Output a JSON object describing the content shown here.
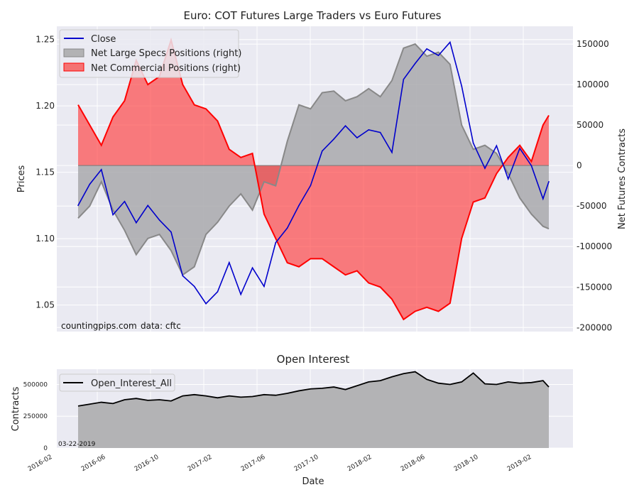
{
  "chart_data": [
    {
      "type": "line",
      "title": "Euro: COT Futures Large Traders vs Euro Futures",
      "xlabel": "",
      "ylabel": "Prices",
      "ylabel_right": "Net Futures Contracts",
      "ylim": [
        1.03,
        1.26
      ],
      "ylim_right": [
        -205000,
        172000
      ],
      "y_ticks": [
        "1.05",
        "1.10",
        "1.15",
        "1.20",
        "1.25"
      ],
      "y_ticks_right": [
        "-200000",
        "-150000",
        "-100000",
        "-50000",
        "0",
        "50000",
        "100000",
        "150000"
      ],
      "legend": [
        "Close",
        "Net Large Specs Positions (right)",
        "Net Commercial Positions (right)"
      ],
      "legend_position": "top-left",
      "watermark": "countingpips.com",
      "source": "data: cftc",
      "x": [
        0,
        4,
        8,
        12,
        16,
        20,
        24,
        28,
        32,
        36,
        40,
        44,
        48,
        52,
        56,
        60,
        64,
        68,
        72,
        76,
        80,
        84,
        88,
        92,
        96,
        100,
        104,
        108,
        112,
        116,
        120,
        124,
        128,
        132,
        136,
        140,
        144,
        148,
        152,
        156,
        160,
        162
      ],
      "series": [
        {
          "name": "Close",
          "color": "#0000cc",
          "values": [
            1.125,
            1.141,
            1.152,
            1.118,
            1.128,
            1.112,
            1.125,
            1.114,
            1.105,
            1.072,
            1.064,
            1.051,
            1.06,
            1.082,
            1.058,
            1.078,
            1.064,
            1.097,
            1.108,
            1.125,
            1.14,
            1.166,
            1.175,
            1.185,
            1.176,
            1.182,
            1.18,
            1.165,
            1.22,
            1.232,
            1.243,
            1.238,
            1.248,
            1.215,
            1.172,
            1.153,
            1.17,
            1.145,
            1.168,
            1.155,
            1.13,
            1.143
          ]
        },
        {
          "name": "Net Large Specs Positions (right)",
          "color": "#999999",
          "values": [
            -65000,
            -50000,
            -20000,
            -55000,
            -80000,
            -110000,
            -90000,
            -85000,
            -105000,
            -135000,
            -125000,
            -85000,
            -70000,
            -50000,
            -35000,
            -55000,
            -20000,
            -25000,
            30000,
            75000,
            70000,
            90000,
            92000,
            80000,
            85000,
            95000,
            85000,
            105000,
            145000,
            150000,
            135000,
            140000,
            125000,
            50000,
            20000,
            25000,
            15000,
            -10000,
            -40000,
            -60000,
            -75000,
            -78000
          ]
        },
        {
          "name": "Net Commercial Positions (right)",
          "color": "#ff0000",
          "values": [
            75000,
            50000,
            25000,
            60000,
            80000,
            130000,
            100000,
            110000,
            155000,
            100000,
            75000,
            70000,
            55000,
            20000,
            10000,
            15000,
            -60000,
            -90000,
            -120000,
            -125000,
            -115000,
            -115000,
            -125000,
            -135000,
            -130000,
            -145000,
            -150000,
            -165000,
            -190000,
            -180000,
            -175000,
            -180000,
            -170000,
            -90000,
            -45000,
            -40000,
            -10000,
            10000,
            25000,
            5000,
            50000,
            62000
          ]
        }
      ]
    },
    {
      "type": "area",
      "title": "Open Interest",
      "xlabel": "Date",
      "ylabel": "Contracts",
      "ylim": [
        0,
        620000
      ],
      "y_ticks": [
        "0",
        "250000",
        "500000"
      ],
      "x_ticks": [
        "2016-02",
        "2016-06",
        "2016-10",
        "2017-02",
        "2017-06",
        "2017-10",
        "2018-02",
        "2018-06",
        "2018-10",
        "2019-02"
      ],
      "legend": [
        "Open_Interest_All"
      ],
      "legend_position": "top-left",
      "annotation": "03-22-2019",
      "x": [
        0,
        4,
        8,
        12,
        16,
        20,
        24,
        28,
        32,
        36,
        40,
        44,
        48,
        52,
        56,
        60,
        64,
        68,
        72,
        76,
        80,
        84,
        88,
        92,
        96,
        100,
        104,
        108,
        112,
        116,
        120,
        124,
        128,
        132,
        136,
        140,
        144,
        148,
        152,
        156,
        160,
        162
      ],
      "series": [
        {
          "name": "Open_Interest_All",
          "color": "#000000",
          "values": [
            330000,
            345000,
            360000,
            350000,
            380000,
            390000,
            375000,
            380000,
            370000,
            410000,
            420000,
            410000,
            395000,
            410000,
            400000,
            405000,
            420000,
            415000,
            430000,
            450000,
            465000,
            470000,
            480000,
            460000,
            490000,
            520000,
            530000,
            560000,
            585000,
            600000,
            540000,
            510000,
            500000,
            520000,
            590000,
            505000,
            500000,
            520000,
            510000,
            515000,
            530000,
            480000
          ]
        }
      ]
    }
  ]
}
